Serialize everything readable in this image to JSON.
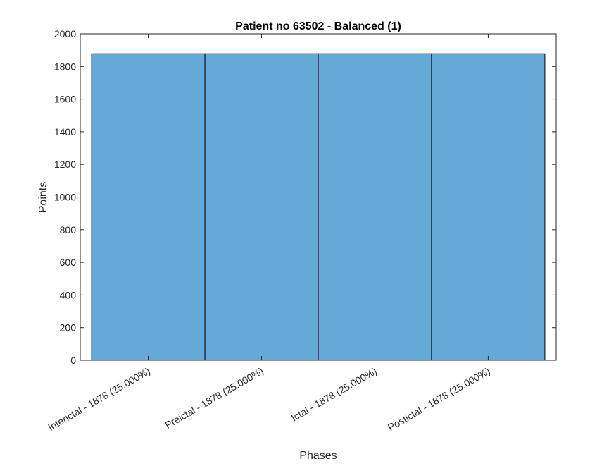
{
  "chart_data": {
    "type": "bar",
    "title": "Patient no 63502 - Balanced (1)",
    "xlabel": "Phases",
    "ylabel": "Points",
    "categories": [
      "Interictal - 1878 (25.000%)",
      "Preictal - 1878 (25.000%)",
      "Ictal - 1878 (25.000%)",
      "Postictal - 1878 (25.000%)"
    ],
    "values": [
      1878,
      1878,
      1878,
      1878
    ],
    "ylim": [
      0,
      2000
    ],
    "yticks": [
      0,
      200,
      400,
      600,
      800,
      1000,
      1200,
      1400,
      1600,
      1800,
      2000
    ],
    "grid": false,
    "legend": "none",
    "colors": {
      "bar_fill": "#65a9d7",
      "bar_edge": "#000000",
      "axis": "#262626"
    }
  }
}
